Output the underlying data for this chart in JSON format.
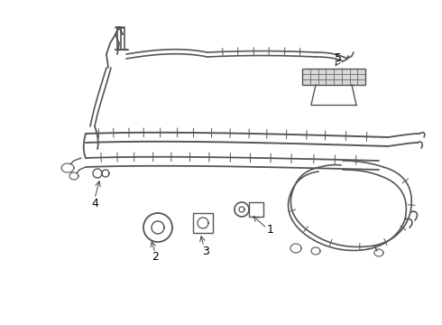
{
  "bg_color": "#ffffff",
  "line_color": "#555555",
  "lw": 1.0,
  "arrow_color": "#444444",
  "label_fontsize": 9
}
